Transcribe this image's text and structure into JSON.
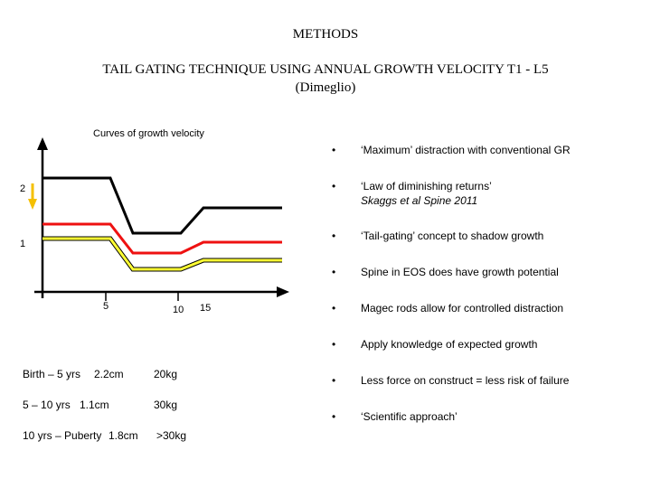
{
  "slide": {
    "title": "METHODS",
    "subtitle_line1": "TAIL GATING TECHNIQUE USING ANNUAL GROWTH VELOCITY T1 - L5",
    "subtitle_line2": "(Dimeglio)"
  },
  "chart": {
    "caption": "Curves of growth velocity",
    "y_labels": [
      "2",
      "1"
    ],
    "x_labels": [
      "5",
      "10",
      "15"
    ],
    "colors": {
      "black": "#000000",
      "red": "#ee1111",
      "yellow": "#ffff33",
      "arrow": "#f5c000"
    }
  },
  "growth_table": [
    {
      "period": "Birth – 5 yrs",
      "growth": "2.2cm",
      "weight": "20kg"
    },
    {
      "period": "5 – 10 yrs",
      "growth": "1.1cm",
      "weight": "30kg"
    },
    {
      "period": "10 yrs – Puberty",
      "growth": "1.8cm",
      "weight": ">30kg"
    }
  ],
  "bullets": [
    {
      "text": "‘Maximum’ distraction with conventional GR"
    },
    {
      "text": "‘Law of diminishing returns’",
      "sub": "Skaggs et al Spine 2011"
    },
    {
      "text": "‘Tail-gating’ concept to shadow growth"
    },
    {
      "text": "Spine in EOS does have growth potential"
    },
    {
      "text": "Magec rods allow for controlled distraction"
    },
    {
      "text": "Apply knowledge of expected growth"
    },
    {
      "text": "Less force on construct = less risk of failure"
    },
    {
      "text": "‘Scientific approach’"
    }
  ],
  "bullet_symbol": "•"
}
